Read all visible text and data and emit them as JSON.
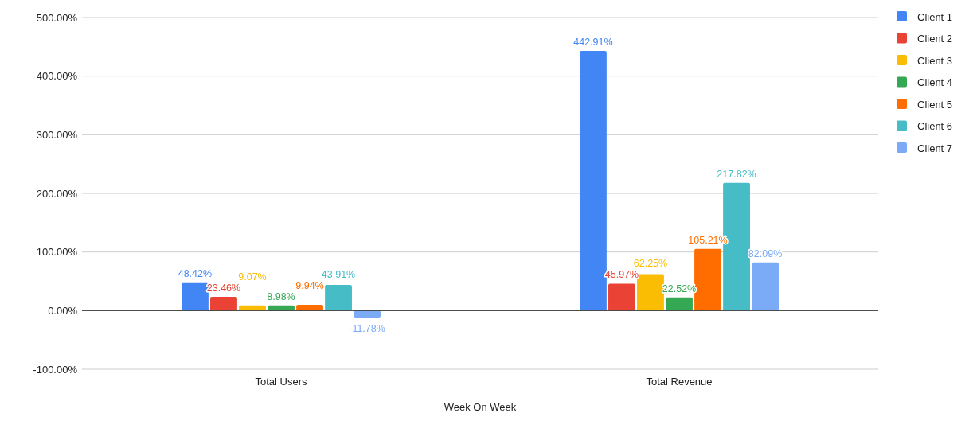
{
  "chart_data": {
    "type": "bar",
    "xlabel": "Week On Week",
    "categories": [
      "Total Users",
      "Total Revenue"
    ],
    "series": [
      {
        "name": "Client 1",
        "color": "#4285f4",
        "values": [
          48.42,
          442.91
        ],
        "value_labels": [
          "48.42%",
          "442.91%"
        ]
      },
      {
        "name": "Client 2",
        "color": "#ea4335",
        "values": [
          23.46,
          45.97
        ],
        "value_labels": [
          "23.46%",
          "45.97%"
        ]
      },
      {
        "name": "Client 3",
        "color": "#fbbc04",
        "values": [
          9.07,
          62.25
        ],
        "value_labels": [
          "9.07%",
          "62.25%"
        ]
      },
      {
        "name": "Client 4",
        "color": "#34a853",
        "values": [
          8.98,
          22.52
        ],
        "value_labels": [
          "8.98%",
          "22.52%"
        ]
      },
      {
        "name": "Client 5",
        "color": "#ff6d01",
        "values": [
          9.94,
          105.21
        ],
        "value_labels": [
          "9.94%",
          "105.21%"
        ]
      },
      {
        "name": "Client 6",
        "color": "#46bdc6",
        "values": [
          43.91,
          217.82
        ],
        "value_labels": [
          "43.91%",
          "217.82%"
        ]
      },
      {
        "name": "Client 7",
        "color": "#7baaf7",
        "values": [
          -11.78,
          82.09
        ],
        "value_labels": [
          "-11.78%",
          "82.09%"
        ]
      }
    ],
    "ylim": [
      -100,
      500
    ],
    "yticks": [
      {
        "value": -100,
        "label": "-100.00%"
      },
      {
        "value": 0,
        "label": "0.00%"
      },
      {
        "value": 100,
        "label": "100.00%"
      },
      {
        "value": 200,
        "label": "200.00%"
      },
      {
        "value": 300,
        "label": "300.00%"
      },
      {
        "value": 400,
        "label": "400.00%"
      },
      {
        "value": 500,
        "label": "500.00%"
      }
    ],
    "grid": "y",
    "legend": "right"
  }
}
